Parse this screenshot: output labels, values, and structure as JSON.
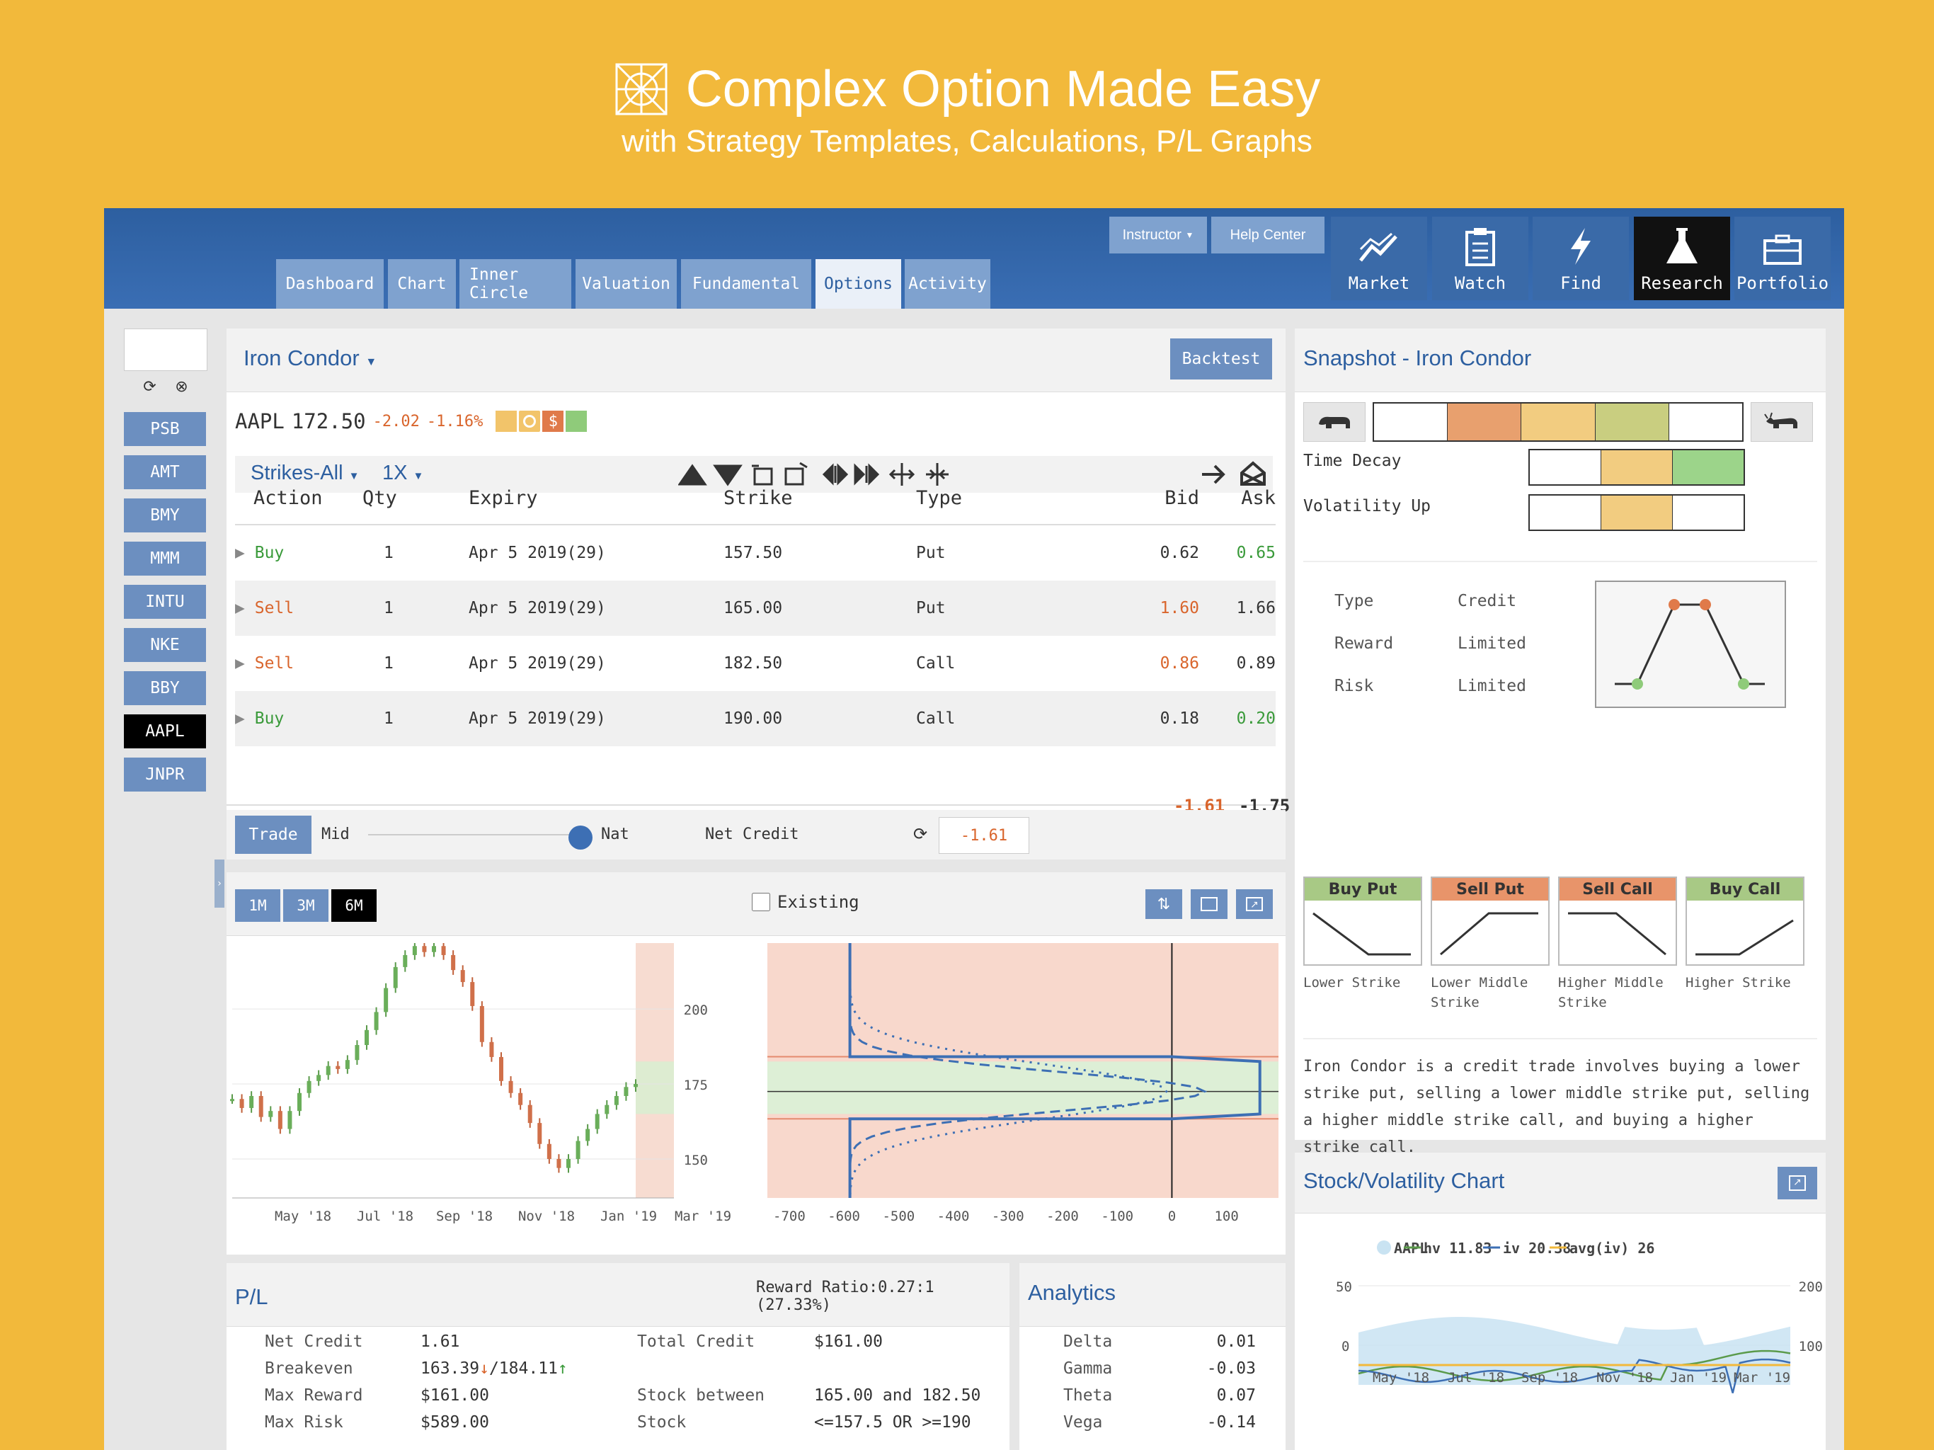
{
  "headline": {
    "title": "Complex Option Made Easy",
    "subtitle": "with Strategy Templates, Calculations, P/L Graphs"
  },
  "topbar": {
    "instructor_label": "Instructor",
    "help_label": "Help Center",
    "tabs": [
      "Dashboard",
      "Chart",
      "Inner Circle",
      "Valuation",
      "Fundamental",
      "Options",
      "Activity"
    ],
    "active_tab": "Options",
    "tools": [
      {
        "label": "Market",
        "icon": "market-trend-icon"
      },
      {
        "label": "Watch",
        "icon": "clipboard-icon"
      },
      {
        "label": "Find",
        "icon": "lightning-icon"
      },
      {
        "label": "Research",
        "icon": "flask-icon"
      },
      {
        "label": "Portfolio",
        "icon": "briefcase-icon"
      }
    ],
    "active_tool": "Research"
  },
  "sidebar": {
    "symbol_input": "",
    "symbols": [
      "PSB",
      "AMT",
      "BMY",
      "MMM",
      "INTU",
      "NKE",
      "BBY",
      "AAPL",
      "JNPR"
    ],
    "active": "AAPL"
  },
  "strategy": {
    "name": "Iron Condor",
    "backtest_label": "Backtest",
    "ticker": "AAPL",
    "price": "172.50",
    "change": "-2.02",
    "change_pct": "-1.16%",
    "strikes_filter": "Strikes-All",
    "multiplier": "1X",
    "columns": [
      "Action",
      "Qty",
      "Expiry",
      "Strike",
      "Type",
      "Bid",
      "Ask"
    ],
    "legs": [
      {
        "action": "Buy",
        "qty": "1",
        "expiry": "Apr 5 2019(29)",
        "strike": "157.50",
        "type": "Put",
        "bid": "0.62",
        "ask": "0.65"
      },
      {
        "action": "Sell",
        "qty": "1",
        "expiry": "Apr 5 2019(29)",
        "strike": "165.00",
        "type": "Put",
        "bid": "1.60",
        "ask": "1.66"
      },
      {
        "action": "Sell",
        "qty": "1",
        "expiry": "Apr 5 2019(29)",
        "strike": "182.50",
        "type": "Call",
        "bid": "0.86",
        "ask": "0.89"
      },
      {
        "action": "Buy",
        "qty": "1",
        "expiry": "Apr 5 2019(29)",
        "strike": "190.00",
        "type": "Call",
        "bid": "0.18",
        "ask": "0.20"
      }
    ],
    "total_bid": "-1.61",
    "total_ask": "-1.75",
    "trade_label": "Trade",
    "mid_label": "Mid",
    "nat_label": "Nat",
    "net_credit_label": "Net Credit",
    "net_credit_value": "-1.61",
    "price_slider": 1.0
  },
  "chart_controls": {
    "ranges": [
      "1M",
      "3M",
      "6M"
    ],
    "active_range": "6M",
    "existing_label": "Existing"
  },
  "chart_data": [
    {
      "type": "line",
      "title": "",
      "x_ticks": [
        "May '18",
        "Jul '18",
        "Sep '18",
        "Nov '18",
        "Jan '19",
        "Mar '19"
      ],
      "y_ticks": [
        "200",
        "175",
        "150"
      ],
      "ylim": [
        137,
        222
      ],
      "series": [
        {
          "values": [
            170,
            167,
            171,
            164,
            166,
            160,
            166,
            172,
            176,
            178,
            181,
            180,
            183,
            188,
            193,
            199,
            207,
            214,
            218,
            221,
            219,
            221,
            218,
            213,
            209,
            201,
            189,
            184,
            176,
            172,
            168,
            162,
            155,
            150,
            147,
            150,
            156,
            160,
            165,
            168,
            171,
            174,
            175
          ]
        }
      ]
    },
    {
      "type": "area",
      "title": "",
      "x_ticks": [
        "-700",
        "-600",
        "-500",
        "-400",
        "-300",
        "-200",
        "-100",
        "0",
        "100"
      ],
      "xlim": [
        -740,
        195
      ],
      "ylim": [
        137,
        222
      ]
    },
    {
      "type": "line",
      "title": "",
      "legend": [
        "AAPL",
        "hv 11.83",
        "iv 20.38",
        "avg(iv) 26"
      ],
      "x_ticks": [
        "May '18",
        "Jul '18",
        "Sep '18",
        "Nov '18",
        "Jan '19",
        "Mar '19"
      ],
      "y_left_ticks": [
        "50",
        "0"
      ],
      "y_right_ticks": [
        "200",
        "100"
      ]
    }
  ],
  "snapshot": {
    "title": "Snapshot - Iron Condor",
    "time_decay_label": "Time Decay",
    "volatility_label": "Volatility Up",
    "type_label": "Type",
    "type_value": "Credit",
    "reward_label": "Reward",
    "reward_value": "Limited",
    "risk_label": "Risk",
    "risk_value": "Limited",
    "cards": [
      {
        "label": "Buy Put",
        "caption": "Lower Strike",
        "color": "#A8C985"
      },
      {
        "label": "Sell Put",
        "caption": "Lower Middle Strike",
        "color": "#E8946A"
      },
      {
        "label": "Sell Call",
        "caption": "Higher Middle Strike",
        "color": "#E8946A"
      },
      {
        "label": "Buy Call",
        "caption": "Higher Strike",
        "color": "#A8C985"
      }
    ],
    "description": "Iron Condor is a credit trade involves buying a lower strike put, selling a lower middle strike put, selling a higher middle strike call, and buying a higher strike call."
  },
  "stock_vol": {
    "title": "Stock/Volatility Chart"
  },
  "pl": {
    "title": "P/L",
    "reward_ratio": "Reward Ratio:0.27:1 (27.33%)",
    "net_credit_label": "Net Credit",
    "net_credit_value": "1.61",
    "breakeven_label": "Breakeven",
    "breakeven_low": "163.39",
    "breakeven_high": "/184.11",
    "max_reward_label": "Max Reward",
    "max_reward_value": "$161.00",
    "max_risk_label": "Max Risk",
    "max_risk_value": "$589.00",
    "total_credit_label": "Total Credit",
    "total_credit_value": "$161.00",
    "stock_between_label": "Stock between",
    "stock_between_value": "165.00 and 182.50",
    "stock_label": "Stock",
    "stock_value": "<=157.5 OR >=190"
  },
  "analytics": {
    "title": "Analytics",
    "rows": [
      {
        "label": "Delta",
        "value": "0.01"
      },
      {
        "label": "Gamma",
        "value": "-0.03"
      },
      {
        "label": "Theta",
        "value": "0.07"
      },
      {
        "label": "Vega",
        "value": "-0.14"
      }
    ]
  },
  "colors": {
    "accent": "#2D5FA0",
    "buy": "#3A9A3A",
    "sell": "#D9652C",
    "background": "#F2B93B"
  }
}
